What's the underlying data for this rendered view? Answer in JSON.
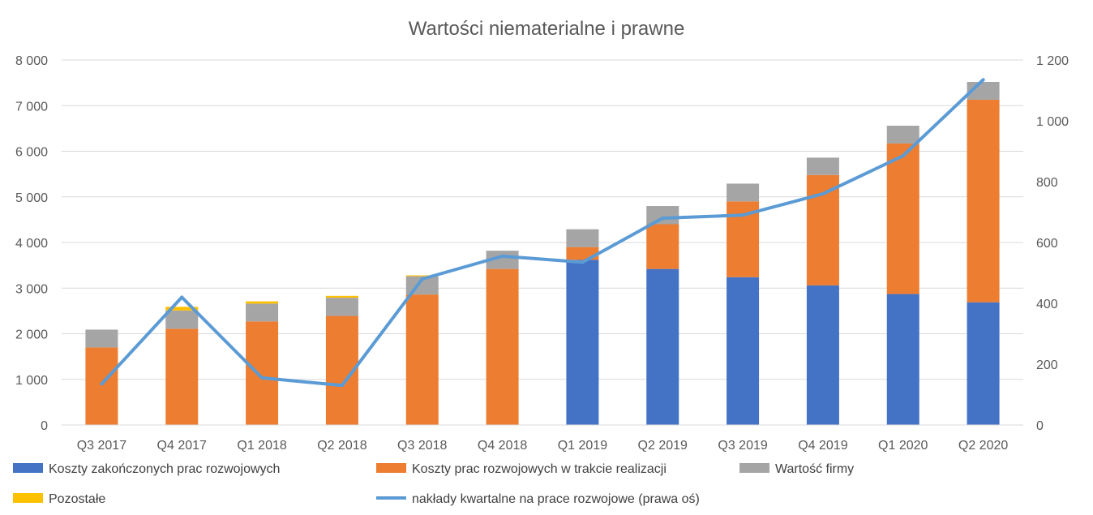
{
  "chart_data": {
    "type": "bar",
    "stacked": true,
    "title": "Wartości niematerialne i prawne",
    "categories": [
      "Q3 2017",
      "Q4 2017",
      "Q1 2018",
      "Q2 2018",
      "Q3 2018",
      "Q4 2018",
      "Q1 2019",
      "Q2 2019",
      "Q3 2019",
      "Q4 2019",
      "Q1 2020",
      "Q2 2020"
    ],
    "y_left": {
      "min": 0,
      "max": 8000,
      "step": 1000,
      "tick_labels": [
        "0",
        "1 000",
        "2 000",
        "3 000",
        "4 000",
        "5 000",
        "6 000",
        "7 000",
        "8 000"
      ]
    },
    "y_right": {
      "min": 0,
      "max": 1200,
      "step": 200,
      "tick_labels": [
        "0",
        "200",
        "400",
        "600",
        "800",
        "1 000",
        "1 200"
      ]
    },
    "grid": true,
    "legend_position": "bottom",
    "series": [
      {
        "name": "Koszty zakończonych prac rozwojowych",
        "color": "#4472C4",
        "axis": "left",
        "values": [
          0,
          0,
          0,
          0,
          0,
          0,
          3620,
          3420,
          3240,
          3060,
          2870,
          2690
        ]
      },
      {
        "name": "Koszty prac rozwojowych w trakcie realizacji",
        "color": "#ED7D31",
        "axis": "left",
        "values": [
          1700,
          2110,
          2270,
          2390,
          2860,
          3420,
          280,
          980,
          1660,
          2420,
          3300,
          4440
        ]
      },
      {
        "name": "Wartość firmy",
        "color": "#A5A5A5",
        "axis": "left",
        "values": [
          390,
          400,
          390,
          400,
          400,
          400,
          390,
          400,
          390,
          380,
          390,
          390
        ]
      },
      {
        "name": "Pozostałe",
        "color": "#FFC000",
        "axis": "left",
        "values": [
          0,
          80,
          50,
          40,
          20,
          0,
          0,
          0,
          0,
          0,
          0,
          0
        ]
      },
      {
        "name": "nakłady kwartalne na prace rozwojowe (prawa oś)",
        "color": "#5B9BD5",
        "axis": "right",
        "type": "line",
        "values": [
          135,
          420,
          155,
          130,
          480,
          555,
          535,
          680,
          690,
          760,
          885,
          1135
        ]
      }
    ]
  }
}
